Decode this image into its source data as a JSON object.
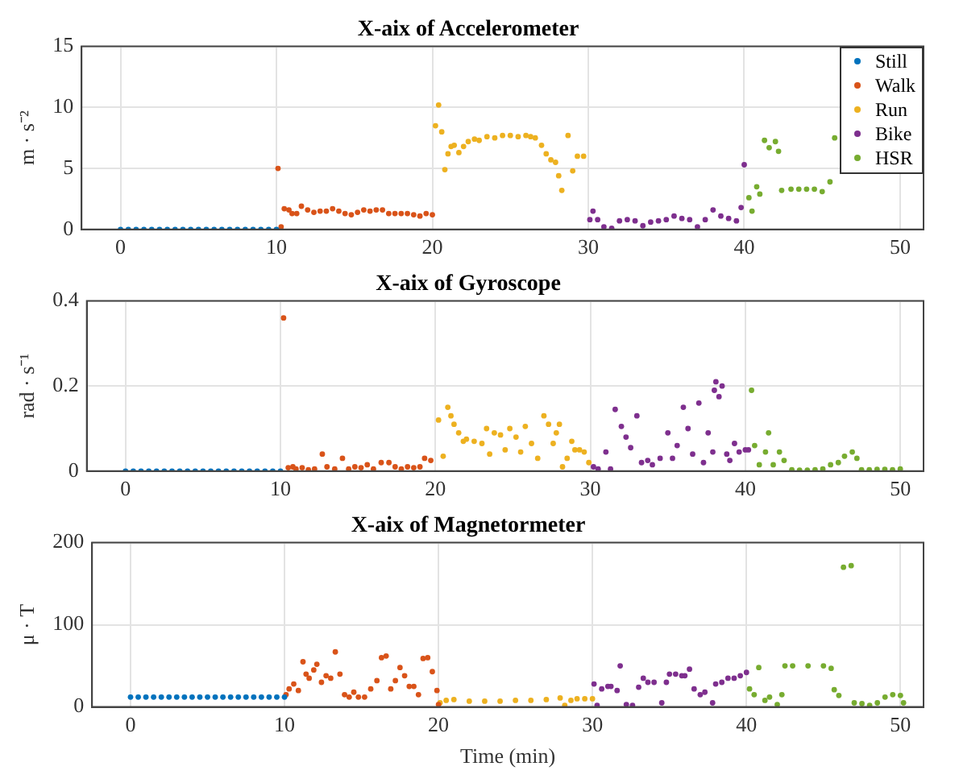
{
  "chart_data": [
    {
      "type": "scatter",
      "title": "X-aix of Accelerometer",
      "ylabel": "m · s⁻²",
      "xlim": [
        -2.5,
        51.5
      ],
      "xticks": [
        0,
        10,
        20,
        30,
        40,
        50
      ],
      "ylim": [
        0,
        15
      ],
      "yticks": [
        0,
        5,
        10,
        15
      ],
      "grid": true,
      "legend": "top right",
      "marker": "circle",
      "series": [
        {
          "name": "Still",
          "color": "#0072bd",
          "x": [
            0,
            0.5,
            1,
            1.5,
            2,
            2.5,
            3,
            3.5,
            4,
            4.5,
            5,
            5.5,
            6,
            6.5,
            7,
            7.5,
            8,
            8.5,
            9,
            9.5,
            10
          ],
          "values": [
            0,
            0,
            0,
            0,
            0,
            0,
            0,
            0,
            0,
            0,
            0,
            0,
            0,
            0,
            0,
            0,
            0,
            0,
            0,
            0,
            0
          ]
        },
        {
          "name": "Walk",
          "color": "#d95319",
          "x": [
            10.1,
            10.3,
            10.5,
            10.8,
            11,
            11.3,
            11.6,
            12,
            12.4,
            12.8,
            13.2,
            13.6,
            14,
            14.4,
            14.8,
            15.2,
            15.6,
            16,
            16.4,
            16.8,
            17.2,
            17.6,
            18,
            18.4,
            18.8,
            19.2,
            19.6,
            20
          ],
          "values": [
            5,
            0.2,
            1.7,
            1.6,
            1.3,
            1.3,
            1.9,
            1.6,
            1.4,
            1.5,
            1.5,
            1.7,
            1.5,
            1.3,
            1.2,
            1.4,
            1.6,
            1.5,
            1.6,
            1.6,
            1.3,
            1.3,
            1.3,
            1.3,
            1.2,
            1.1,
            1.3,
            1.2
          ]
        },
        {
          "name": "Run",
          "color": "#edb120",
          "x": [
            20.2,
            20.4,
            20.6,
            20.8,
            21,
            21.2,
            21.4,
            21.7,
            22,
            22.3,
            22.7,
            23,
            23.5,
            24,
            24.5,
            25,
            25.5,
            26,
            26.3,
            26.6,
            27,
            27.3,
            27.6,
            27.9,
            28.1,
            28.3,
            28.7,
            29,
            29.3,
            29.7
          ],
          "values": [
            8.5,
            10.2,
            8,
            4.9,
            6.2,
            6.8,
            6.9,
            6.3,
            6.8,
            7.2,
            7.4,
            7.3,
            7.6,
            7.5,
            7.7,
            7.7,
            7.6,
            7.7,
            7.6,
            7.5,
            6.9,
            6.2,
            5.7,
            5.5,
            4.4,
            3.2,
            7.7,
            4.8,
            6,
            6
          ]
        },
        {
          "name": "Bike",
          "color": "#7e2f8e",
          "x": [
            30.1,
            30.3,
            30.6,
            31,
            31.5,
            32,
            32.5,
            33,
            33.5,
            34,
            34.5,
            35,
            35.5,
            36,
            36.5,
            37,
            37.5,
            38,
            38.5,
            39,
            39.5,
            39.8,
            40
          ],
          "values": [
            0.8,
            1.5,
            0.8,
            0.2,
            0.1,
            0.7,
            0.8,
            0.7,
            0.3,
            0.6,
            0.7,
            0.8,
            1.1,
            0.9,
            0.8,
            0.2,
            0.8,
            1.6,
            1.1,
            0.9,
            0.7,
            1.8,
            5.3
          ]
        },
        {
          "name": "HSR",
          "color": "#77ac30",
          "x": [
            40.3,
            40.5,
            40.8,
            41,
            41.3,
            41.6,
            42,
            42.2,
            42.4,
            43,
            43.5,
            44,
            44.5,
            45,
            45.5,
            45.8
          ],
          "values": [
            2.6,
            1.5,
            3.5,
            2.9,
            7.3,
            6.7,
            7.2,
            6.4,
            3.2,
            3.3,
            3.3,
            3.3,
            3.3,
            3.1,
            3.9,
            7.5
          ]
        }
      ]
    },
    {
      "type": "scatter",
      "title": "X-aix of Gyroscope",
      "ylabel": "rad · s⁻¹",
      "xlim": [
        -2.5,
        51.5
      ],
      "xticks": [
        0,
        10,
        20,
        30,
        40,
        50
      ],
      "ylim": [
        0,
        0.4
      ],
      "yticks": [
        0,
        0.2,
        0.4
      ],
      "grid": true,
      "marker": "circle",
      "series": [
        {
          "color": "#0072bd",
          "x": [
            0,
            0.5,
            1,
            1.5,
            2,
            2.5,
            3,
            3.5,
            4,
            4.5,
            5,
            5.5,
            6,
            6.5,
            7,
            7.5,
            8,
            8.5,
            9,
            9.5,
            10
          ],
          "values": [
            0,
            0,
            0,
            0,
            0,
            0,
            0,
            0,
            0,
            0,
            0,
            0,
            0,
            0,
            0,
            0,
            0,
            0,
            0,
            0,
            0
          ]
        },
        {
          "color": "#d95319",
          "x": [
            10.2,
            10.5,
            10.8,
            11,
            11.4,
            11.8,
            12.2,
            12.7,
            13,
            13.5,
            14,
            14.4,
            14.8,
            15.2,
            15.6,
            16,
            16.5,
            17,
            17.4,
            17.8,
            18.2,
            18.6,
            19,
            19.3,
            19.7
          ],
          "values": [
            0.36,
            0.008,
            0.01,
            0.005,
            0.008,
            0.003,
            0.005,
            0.04,
            0.01,
            0.005,
            0.03,
            0.005,
            0.01,
            0.008,
            0.015,
            0.005,
            0.02,
            0.02,
            0.01,
            0.005,
            0.01,
            0.008,
            0.01,
            0.03,
            0.025
          ]
        },
        {
          "color": "#edb120",
          "x": [
            20.2,
            20.5,
            20.8,
            21,
            21.2,
            21.5,
            21.8,
            22,
            22.5,
            23,
            23.3,
            23.5,
            23.8,
            24.2,
            24.5,
            24.8,
            25.2,
            25.5,
            25.8,
            26.2,
            26.6,
            27,
            27.3,
            27.6,
            27.8,
            28,
            28.2,
            28.5,
            28.8,
            29,
            29.3,
            29.6,
            29.9
          ],
          "values": [
            0.12,
            0.035,
            0.15,
            0.13,
            0.11,
            0.09,
            0.07,
            0.075,
            0.07,
            0.065,
            0.1,
            0.04,
            0.09,
            0.085,
            0.05,
            0.1,
            0.08,
            0.045,
            0.105,
            0.065,
            0.03,
            0.13,
            0.11,
            0.065,
            0.09,
            0.11,
            0.01,
            0.03,
            0.07,
            0.05,
            0.05,
            0.045,
            0.02
          ]
        },
        {
          "color": "#7e2f8e",
          "x": [
            30.2,
            30.5,
            31,
            31.3,
            31.6,
            32,
            32.3,
            32.6,
            33,
            33.3,
            33.7,
            34,
            34.5,
            35,
            35.3,
            35.6,
            36,
            36.3,
            36.6,
            37,
            37.3,
            37.6,
            37.9,
            38,
            38.1,
            38.3,
            38.5,
            38.8,
            39,
            39.3,
            39.6,
            40,
            40.2
          ],
          "values": [
            0.01,
            0.005,
            0.045,
            0.005,
            0.145,
            0.105,
            0.08,
            0.055,
            0.13,
            0.02,
            0.025,
            0.015,
            0.03,
            0.09,
            0.03,
            0.06,
            0.15,
            0.1,
            0.04,
            0.16,
            0.02,
            0.09,
            0.045,
            0.19,
            0.21,
            0.175,
            0.2,
            0.04,
            0.025,
            0.065,
            0.045,
            0.05,
            0.05
          ]
        },
        {
          "color": "#77ac30",
          "x": [
            40.4,
            40.6,
            40.9,
            41.3,
            41.5,
            41.8,
            42.2,
            42.5,
            43,
            43.5,
            44,
            44.5,
            45,
            45.5,
            46,
            46.4,
            46.9,
            47.2,
            47.5,
            48,
            48.5,
            49,
            49.5,
            50
          ],
          "values": [
            0.19,
            0.06,
            0.015,
            0.045,
            0.09,
            0.015,
            0.045,
            0.025,
            0.003,
            0.002,
            0.002,
            0.003,
            0.005,
            0.015,
            0.02,
            0.035,
            0.045,
            0.03,
            0.003,
            0.003,
            0.004,
            0.004,
            0.003,
            0.005
          ]
        }
      ]
    },
    {
      "type": "scatter",
      "title": "X-aix of Magnetormeter",
      "xlabel": "Time (min)",
      "ylabel": "μ · T",
      "xlim": [
        -2.5,
        51.5
      ],
      "xticks": [
        0,
        10,
        20,
        30,
        40,
        50
      ],
      "ylim": [
        0,
        200
      ],
      "yticks": [
        0,
        100,
        200
      ],
      "grid": true,
      "marker": "circle",
      "series": [
        {
          "color": "#0072bd",
          "x": [
            0,
            0.5,
            1,
            1.5,
            2,
            2.5,
            3,
            3.5,
            4,
            4.5,
            5,
            5.5,
            6,
            6.5,
            7,
            7.5,
            8,
            8.5,
            9,
            9.5,
            10
          ],
          "values": [
            12,
            12,
            12,
            12,
            12,
            12,
            12,
            12,
            12,
            12,
            12,
            12,
            12,
            12,
            12,
            12,
            12,
            12,
            12,
            12,
            12
          ]
        },
        {
          "color": "#d95319",
          "x": [
            10.1,
            10.3,
            10.6,
            10.9,
            11.2,
            11.4,
            11.6,
            11.9,
            12.1,
            12.4,
            12.7,
            13,
            13.3,
            13.6,
            13.9,
            14.2,
            14.5,
            14.8,
            15.2,
            15.6,
            16,
            16.3,
            16.6,
            16.9,
            17.2,
            17.5,
            17.8,
            18.1,
            18.4,
            18.7,
            19,
            19.3,
            19.6,
            19.9,
            20
          ],
          "values": [
            15,
            22,
            28,
            20,
            55,
            40,
            35,
            45,
            52,
            30,
            38,
            35,
            67,
            40,
            15,
            12,
            18,
            12,
            12,
            22,
            32,
            60,
            62,
            22,
            32,
            48,
            38,
            25,
            25,
            15,
            59,
            60,
            43,
            20,
            3
          ]
        },
        {
          "color": "#edb120",
          "x": [
            20.1,
            20.5,
            21,
            22,
            23,
            24,
            25,
            26,
            27,
            27.9,
            28.2,
            28.6,
            29,
            29.5,
            30
          ],
          "values": [
            5,
            8,
            9,
            7,
            7,
            7,
            8,
            8,
            9,
            11,
            2,
            8,
            10,
            10,
            10
          ]
        },
        {
          "color": "#7e2f8e",
          "x": [
            30.1,
            30.3,
            30.6,
            31,
            31.2,
            31.6,
            31.8,
            32.2,
            32.6,
            33,
            33.3,
            33.6,
            34,
            34.5,
            34.8,
            35,
            35.4,
            35.8,
            36,
            36.3,
            36.6,
            37,
            37.3,
            37.8,
            38,
            38.4,
            38.8,
            39.2,
            39.6,
            40
          ],
          "values": [
            28,
            2,
            22,
            25,
            25,
            20,
            50,
            3,
            2,
            24,
            35,
            30,
            30,
            5,
            30,
            40,
            40,
            38,
            38,
            46,
            22,
            15,
            18,
            5,
            28,
            30,
            35,
            35,
            38,
            42
          ]
        },
        {
          "color": "#77ac30",
          "x": [
            40.2,
            40.5,
            40.8,
            41.2,
            41.5,
            42,
            42.3,
            42.5,
            43,
            44,
            45,
            45.5,
            45.7,
            46,
            46.3,
            46.8,
            47,
            47.5,
            48,
            48.5,
            49,
            49.5,
            50,
            50.2
          ],
          "values": [
            22,
            15,
            48,
            8,
            12,
            3,
            15,
            50,
            50,
            50,
            50,
            47,
            21,
            14,
            170,
            172,
            5,
            4,
            2,
            5,
            12,
            15,
            14,
            5
          ]
        }
      ]
    }
  ]
}
